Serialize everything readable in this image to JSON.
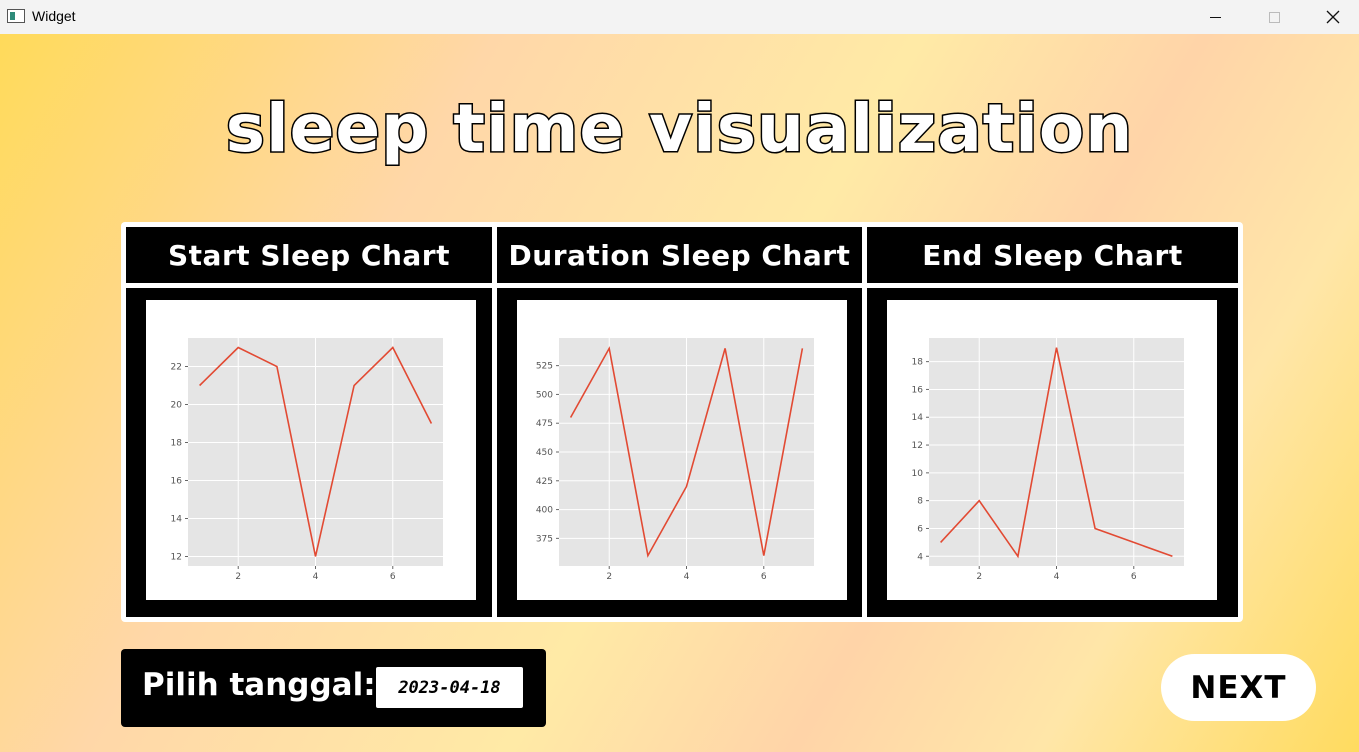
{
  "window": {
    "title": "Widget"
  },
  "page": {
    "title": "sleep time visualization"
  },
  "charts": [
    {
      "header": "Start Sleep Chart",
      "chart_data": {
        "type": "line",
        "x": [
          1,
          2,
          3,
          4,
          5,
          6,
          7
        ],
        "y": [
          21,
          23,
          22,
          12,
          21,
          23,
          19
        ],
        "xlim": [
          0.7,
          7.3
        ],
        "ylim": [
          11.5,
          23.5
        ],
        "xticks": [
          2,
          4,
          6
        ],
        "yticks": [
          12,
          14,
          16,
          18,
          20,
          22
        ],
        "grid": true,
        "line_color": "#e24a33"
      }
    },
    {
      "header": "Duration Sleep Chart",
      "chart_data": {
        "type": "line",
        "x": [
          1,
          2,
          3,
          4,
          5,
          6,
          7
        ],
        "y": [
          480,
          540,
          360,
          420,
          540,
          360,
          540
        ],
        "xlim": [
          0.7,
          7.3
        ],
        "ylim": [
          351,
          549
        ],
        "xticks": [
          2,
          4,
          6
        ],
        "yticks": [
          375,
          400,
          425,
          450,
          475,
          500,
          525
        ],
        "grid": true,
        "line_color": "#e24a33"
      }
    },
    {
      "header": "End Sleep Chart",
      "chart_data": {
        "type": "line",
        "x": [
          1,
          2,
          3,
          4,
          5,
          6,
          7
        ],
        "y": [
          5,
          8,
          4,
          19,
          6,
          5,
          4
        ],
        "xlim": [
          0.7,
          7.3
        ],
        "ylim": [
          3.3,
          19.7
        ],
        "xticks": [
          2,
          4,
          6
        ],
        "yticks": [
          4,
          6,
          8,
          10,
          12,
          14,
          16,
          18
        ],
        "grid": true,
        "line_color": "#e24a33"
      }
    }
  ],
  "date_picker": {
    "label": "Pilih tanggal:",
    "value": "2023-04-18"
  },
  "next_button": {
    "label": "NEXT"
  },
  "colors": {
    "background_accent": "#ffda5a",
    "panel": "#000000",
    "line": "#e24a33",
    "plot_bg": "#e5e5e5"
  }
}
